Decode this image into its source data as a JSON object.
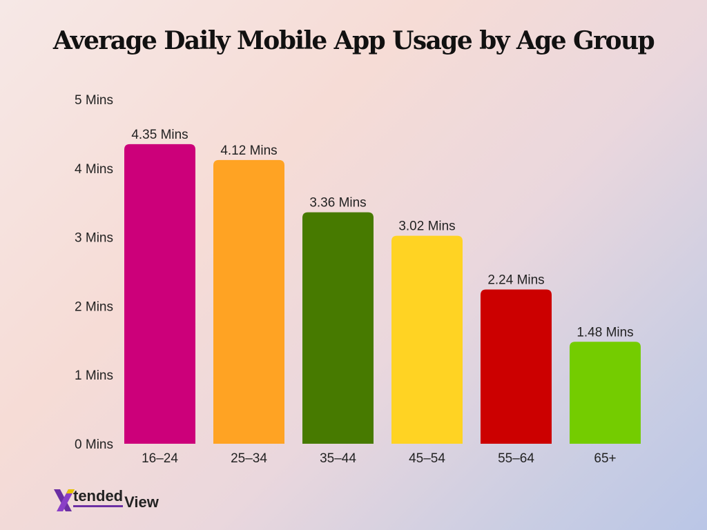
{
  "chart_data": {
    "type": "bar",
    "title": "Average Daily Mobile App Usage by Age Group",
    "categories": [
      "16–24",
      "25–34",
      "35–44",
      "45–54",
      "55–64",
      "65+"
    ],
    "values": [
      4.35,
      4.12,
      3.36,
      3.02,
      2.24,
      1.48
    ],
    "value_labels": [
      "4.35 Mins",
      "4.12 Mins",
      "3.36 Mins",
      "3.02 Mins",
      "2.24 Mins",
      "1.48 Mins"
    ],
    "colors": [
      "#cc007a",
      "#ffa323",
      "#477a00",
      "#ffd323",
      "#cc0000",
      "#74cc00"
    ],
    "ylim": [
      0,
      5
    ],
    "yticks": [
      0,
      1,
      2,
      3,
      4,
      5
    ],
    "ytick_labels": [
      "0 Mins",
      "1 Mins",
      "2 Mins",
      "3 Mins",
      "4 Mins",
      "5 Mins"
    ],
    "xlabel": "",
    "ylabel": "",
    "grid": false,
    "legend": "none"
  },
  "logo": {
    "mark": "X",
    "part1": "tended",
    "part2": "View",
    "mark_color": "#6b2fa3"
  }
}
